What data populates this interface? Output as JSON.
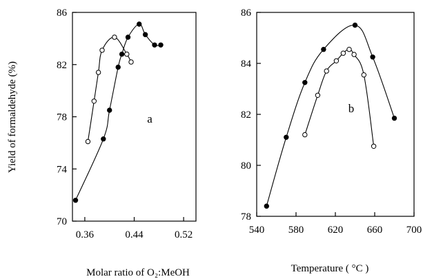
{
  "chart_data": [
    {
      "type": "line",
      "annotation": "a",
      "xlabel": "Molar ratio of O₂:MeOH",
      "ylabel": "Yield of formaldehyde (%)",
      "xlim": [
        0.34,
        0.54
      ],
      "ylim": [
        70,
        86
      ],
      "xticks": [
        "0.36",
        "0.44",
        "0.52"
      ],
      "xtick_values": [
        0.36,
        0.44,
        0.52
      ],
      "yticks": [
        "70",
        "74",
        "78",
        "82",
        "86"
      ],
      "ytick_values": [
        70,
        74,
        78,
        82,
        86
      ],
      "series": [
        {
          "marker": "open",
          "x": [
            0.365,
            0.375,
            0.382,
            0.388,
            0.408,
            0.428,
            0.435
          ],
          "y": [
            76.1,
            79.2,
            81.4,
            83.1,
            84.1,
            82.8,
            82.2
          ]
        },
        {
          "marker": "filled",
          "x": [
            0.345,
            0.39,
            0.4,
            0.414,
            0.42,
            0.43,
            0.448,
            0.458,
            0.473,
            0.483
          ],
          "y": [
            71.6,
            76.3,
            78.5,
            81.8,
            82.8,
            84.1,
            85.1,
            84.3,
            83.5,
            83.5
          ]
        }
      ]
    },
    {
      "type": "line",
      "annotation": "b",
      "xlabel": "Temperature ( °C )",
      "ylabel": "",
      "xlim": [
        540,
        700
      ],
      "ylim": [
        78,
        86
      ],
      "xticks": [
        "540",
        "580",
        "620",
        "660",
        "700"
      ],
      "xtick_values": [
        540,
        580,
        620,
        660,
        700
      ],
      "yticks": [
        "78",
        "80",
        "82",
        "84",
        "86"
      ],
      "ytick_values": [
        78,
        80,
        82,
        84,
        86
      ],
      "series": [
        {
          "marker": "filled",
          "x": [
            550,
            570,
            589,
            608,
            640,
            658,
            680
          ],
          "y": [
            78.4,
            81.1,
            83.25,
            84.55,
            85.5,
            84.25,
            81.85
          ]
        },
        {
          "marker": "open",
          "x": [
            589,
            602,
            611,
            621,
            628,
            634,
            639,
            649,
            659
          ],
          "y": [
            81.2,
            82.75,
            83.7,
            84.1,
            84.4,
            84.55,
            84.35,
            83.55,
            80.75
          ]
        }
      ]
    }
  ]
}
